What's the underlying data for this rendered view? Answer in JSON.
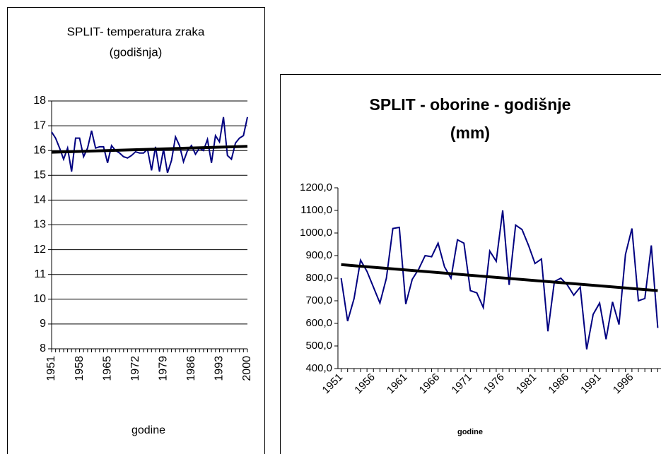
{
  "chart_data": [
    {
      "type": "line",
      "title": "SPLIT- temperatura zraka",
      "subtitle": "(godišnja)",
      "x_label": "godine",
      "x": [
        1951,
        1952,
        1953,
        1954,
        1955,
        1956,
        1957,
        1958,
        1959,
        1960,
        1961,
        1962,
        1963,
        1964,
        1965,
        1966,
        1967,
        1968,
        1969,
        1970,
        1971,
        1972,
        1973,
        1974,
        1975,
        1976,
        1977,
        1978,
        1979,
        1980,
        1981,
        1982,
        1983,
        1984,
        1985,
        1986,
        1987,
        1988,
        1989,
        1990,
        1991,
        1992,
        1993,
        1994,
        1995,
        1996,
        1997,
        1998,
        1999,
        2000
      ],
      "series": [
        {
          "color": "#000080",
          "values": [
            16.75,
            16.5,
            16.1,
            15.65,
            16.1,
            15.15,
            16.5,
            16.5,
            15.75,
            16.1,
            16.8,
            16.1,
            16.15,
            16.15,
            15.5,
            16.2,
            16.0,
            15.9,
            15.75,
            15.7,
            15.8,
            15.95,
            15.9,
            15.9,
            16.05,
            15.2,
            16.15,
            15.15,
            16.05,
            15.1,
            15.6,
            16.55,
            16.2,
            15.55,
            16.0,
            16.2,
            15.85,
            16.1,
            16.0,
            16.45,
            15.5,
            16.6,
            16.35,
            17.35,
            15.8,
            15.65,
            16.3,
            16.5,
            16.6,
            17.35
          ]
        }
      ],
      "trend": {
        "color": "#000000",
        "x": [
          1951,
          2000
        ],
        "values": [
          15.93,
          16.17
        ]
      },
      "xlim": [
        1951,
        2000
      ],
      "xticks": [
        1951,
        1958,
        1965,
        1972,
        1979,
        1986,
        1993,
        2000
      ],
      "ylim": [
        8,
        18
      ],
      "yticks": [
        8,
        9,
        10,
        11,
        12,
        13,
        14,
        15,
        16,
        17,
        18
      ],
      "grid": true
    },
    {
      "type": "line",
      "title": "SPLIT - oborine - godišnje",
      "subtitle": "(mm)",
      "x_label": "godine",
      "x": [
        1951,
        1952,
        1953,
        1954,
        1955,
        1956,
        1957,
        1958,
        1959,
        1960,
        1961,
        1962,
        1963,
        1964,
        1965,
        1966,
        1967,
        1968,
        1969,
        1970,
        1971,
        1972,
        1973,
        1974,
        1975,
        1976,
        1977,
        1978,
        1979,
        1980,
        1981,
        1982,
        1983,
        1984,
        1985,
        1986,
        1987,
        1988,
        1989,
        1990,
        1991,
        1992,
        1993,
        1994,
        1995,
        1996,
        1997,
        1998,
        1999,
        2000
      ],
      "series": [
        {
          "color": "#000080",
          "values": [
            800,
            610,
            710,
            880,
            830,
            760,
            690,
            800,
            1020,
            1025,
            685,
            795,
            840,
            900,
            895,
            955,
            850,
            800,
            970,
            955,
            745,
            735,
            670,
            920,
            875,
            1100,
            770,
            1035,
            1015,
            945,
            865,
            885,
            565,
            785,
            800,
            770,
            725,
            760,
            485,
            640,
            690,
            530,
            695,
            595,
            905,
            1020,
            700,
            710,
            945,
            580
          ]
        }
      ],
      "trend": {
        "color": "#000000",
        "x": [
          1951,
          2000
        ],
        "values": [
          860,
          745
        ]
      },
      "xlim": [
        1950.5,
        2000.5
      ],
      "xticks": [
        1951,
        1956,
        1961,
        1966,
        1971,
        1976,
        1981,
        1986,
        1991,
        1996
      ],
      "ylim": [
        400,
        1200
      ],
      "yticks": [
        {
          "value": 400,
          "label": "400,0"
        },
        {
          "value": 500,
          "label": "500,0"
        },
        {
          "value": 600,
          "label": "600,0"
        },
        {
          "value": 700,
          "label": "700,0"
        },
        {
          "value": 800,
          "label": "800,0"
        },
        {
          "value": 900,
          "label": "900,0"
        },
        {
          "value": 1000,
          "label": "1000,0"
        },
        {
          "value": 1100,
          "label": "1100,0"
        },
        {
          "value": 1200,
          "label": "1200,0"
        }
      ],
      "grid": false
    }
  ]
}
